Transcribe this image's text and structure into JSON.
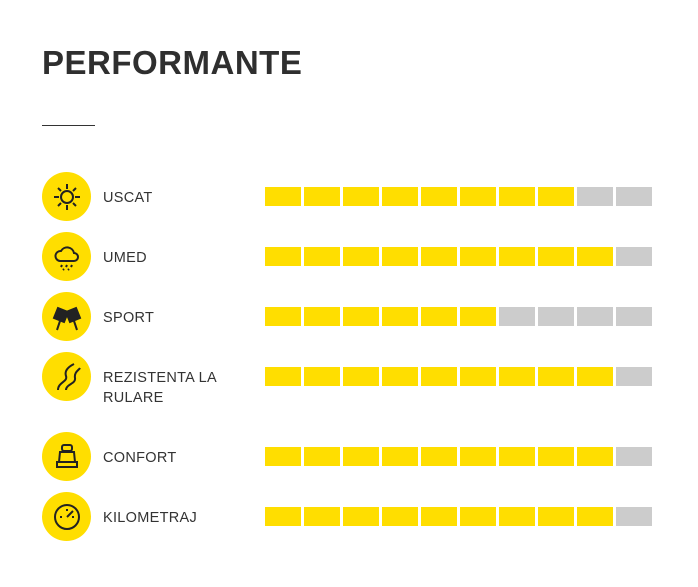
{
  "title": "PERFORMANTE",
  "colors": {
    "filled": "#ffde00",
    "empty": "#cccccc"
  },
  "max": 10,
  "rows": [
    {
      "label": "USCAT",
      "icon": "sun-icon",
      "value": 8
    },
    {
      "label": "UMED",
      "icon": "rain-cloud-icon",
      "value": 9
    },
    {
      "label": "SPORT",
      "icon": "checkered-flags-icon",
      "value": 6
    },
    {
      "label": "REZISTENTA LA RULARE",
      "icon": "road-icon",
      "value": 9
    },
    {
      "label": "CONFORT",
      "icon": "car-seat-icon",
      "value": 9
    },
    {
      "label": "KILOMETRAJ",
      "icon": "speedometer-icon",
      "value": 9
    }
  ]
}
